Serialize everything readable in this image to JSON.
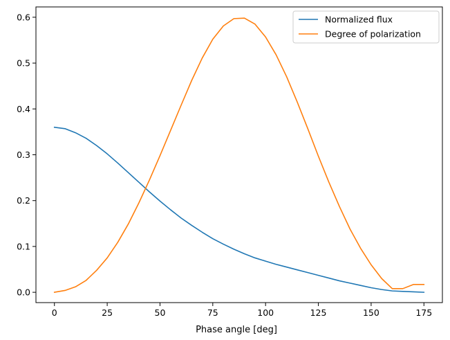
{
  "chart_data": {
    "type": "line",
    "title": "",
    "xlabel": "Phase angle [deg]",
    "ylabel": "",
    "xlim": [
      -8.75,
      183.75
    ],
    "ylim": [
      -0.0225,
      0.6225
    ],
    "xticks": [
      0,
      25,
      50,
      75,
      100,
      125,
      150,
      175
    ],
    "yticks": [
      0.0,
      0.1,
      0.2,
      0.3,
      0.4,
      0.5,
      0.6
    ],
    "xtick_labels": [
      "0",
      "25",
      "50",
      "75",
      "100",
      "125",
      "150",
      "175"
    ],
    "ytick_labels": [
      "0.0",
      "0.1",
      "0.2",
      "0.3",
      "0.4",
      "0.5",
      "0.6"
    ],
    "grid": false,
    "legend_position": "top-right",
    "x": [
      0,
      5,
      10,
      15,
      20,
      25,
      30,
      35,
      40,
      45,
      50,
      55,
      60,
      65,
      70,
      75,
      80,
      85,
      90,
      95,
      100,
      105,
      110,
      115,
      120,
      125,
      130,
      135,
      140,
      145,
      150,
      155,
      160,
      165,
      170,
      175
    ],
    "series": [
      {
        "name": "Normalized flux",
        "color": "#1f77b4",
        "values": [
          0.36,
          0.357,
          0.348,
          0.336,
          0.32,
          0.302,
          0.282,
          0.261,
          0.24,
          0.219,
          0.199,
          0.18,
          0.162,
          0.146,
          0.131,
          0.117,
          0.105,
          0.094,
          0.084,
          0.075,
          0.068,
          0.061,
          0.055,
          0.049,
          0.043,
          0.037,
          0.031,
          0.025,
          0.02,
          0.015,
          0.01,
          0.006,
          0.003,
          0.002,
          0.001,
          0.0
        ]
      },
      {
        "name": "Degree of polarization",
        "color": "#ff7f0e",
        "values": [
          0.0,
          0.004,
          0.012,
          0.026,
          0.048,
          0.075,
          0.109,
          0.149,
          0.195,
          0.245,
          0.298,
          0.353,
          0.408,
          0.462,
          0.511,
          0.552,
          0.581,
          0.597,
          0.598,
          0.585,
          0.557,
          0.518,
          0.47,
          0.415,
          0.357,
          0.297,
          0.24,
          0.187,
          0.138,
          0.096,
          0.06,
          0.03,
          0.008,
          0.008,
          0.017,
          0.017
        ]
      }
    ]
  }
}
